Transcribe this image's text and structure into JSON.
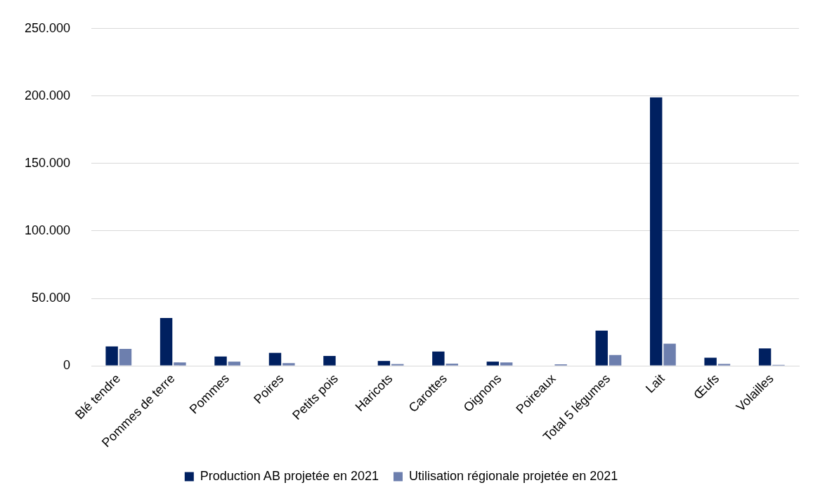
{
  "chart_data": {
    "type": "bar",
    "categories": [
      "Blé tendre",
      "Pommes de terre",
      "Pommes",
      "Poires",
      "Petits pois",
      "Haricots",
      "Carottes",
      "Oignons",
      "Poireaux",
      "Total 5 légumes",
      "Lait",
      "Œufs",
      "Volailles"
    ],
    "series": [
      {
        "name": "Production AB projetée en 2021",
        "color": "#002060",
        "values": [
          14400,
          35400,
          6900,
          9600,
          7300,
          3600,
          10600,
          3100,
          0,
          26100,
          199000,
          6000,
          12900
        ]
      },
      {
        "name": "Utilisation régionale projetée en 2021",
        "color": "#6d7fae",
        "values": [
          12500,
          2500,
          3100,
          2000,
          0,
          1300,
          1600,
          2500,
          1100,
          8000,
          16400,
          1400,
          700
        ]
      }
    ],
    "ylim": [
      0,
      250000
    ],
    "yticks": [
      {
        "value": 0,
        "label": "0"
      },
      {
        "value": 50000,
        "label": "50.000"
      },
      {
        "value": 100000,
        "label": "100.000"
      },
      {
        "value": 150000,
        "label": "150.000"
      },
      {
        "value": 200000,
        "label": "200.000"
      },
      {
        "value": 250000,
        "label": "250.000"
      }
    ],
    "grid": "y",
    "legend": "bottom"
  }
}
